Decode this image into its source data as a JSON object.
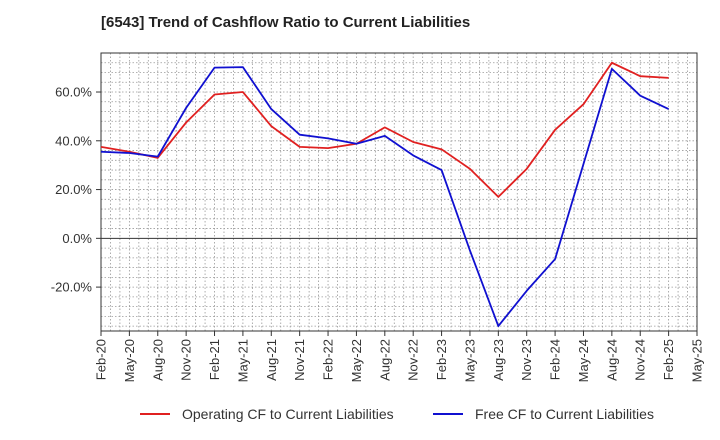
{
  "chart_data": {
    "type": "line",
    "title": "[6543]  Trend of Cashflow Ratio to Current Liabilities",
    "xlabel": "",
    "ylabel": "",
    "ylim": [
      -38,
      76
    ],
    "y_ticks": [
      {
        "value": 60,
        "label": "60.0%"
      },
      {
        "value": 40,
        "label": "40.0%"
      },
      {
        "value": 20,
        "label": "20.0%"
      },
      {
        "value": 0,
        "label": "0.0%"
      },
      {
        "value": -20,
        "label": "-20.0%"
      }
    ],
    "x": [
      "Feb-20",
      "May-20",
      "Aug-20",
      "Nov-20",
      "Feb-21",
      "May-21",
      "Aug-21",
      "Nov-21",
      "Feb-22",
      "May-22",
      "Aug-22",
      "Nov-22",
      "Feb-23",
      "May-23",
      "Aug-23",
      "Nov-23",
      "Feb-24",
      "May-24",
      "Aug-24",
      "Nov-24",
      "Feb-25",
      "May-25"
    ],
    "series": [
      {
        "name": "Operating CF to Current Liabilities",
        "color": "#e02020",
        "values": [
          37.5,
          35.5,
          33.0,
          47.5,
          59.0,
          60.0,
          46.0,
          37.5,
          37.0,
          38.8,
          45.5,
          39.5,
          36.5,
          28.5,
          17.0,
          28.5,
          44.5,
          55.0,
          72.0,
          66.5,
          65.8,
          null
        ]
      },
      {
        "name": "Free CF to Current Liabilities",
        "color": "#1010d0",
        "values": [
          35.5,
          35.0,
          33.5,
          53.5,
          70.0,
          70.2,
          53.0,
          42.5,
          41.0,
          38.8,
          42.0,
          34.0,
          28.0,
          -5.0,
          -36.0,
          -21.5,
          -8.5,
          30.5,
          69.5,
          58.5,
          53.0,
          null
        ]
      }
    ],
    "grid": true,
    "legend": "bottom"
  }
}
